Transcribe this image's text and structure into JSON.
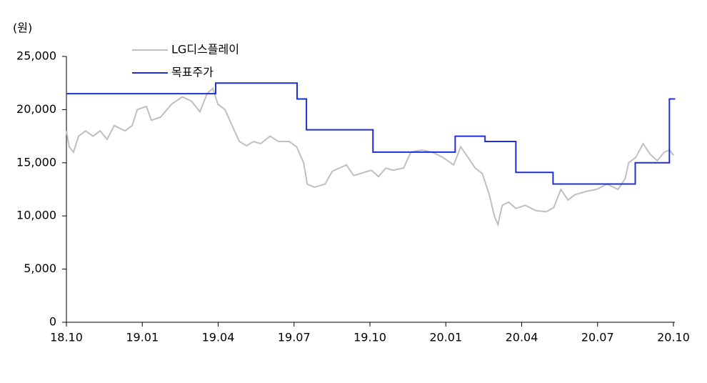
{
  "chart_data": {
    "type": "line",
    "y_label": "(원)",
    "xlim": [
      0,
      24
    ],
    "xticks": [
      {
        "value": 0,
        "label": "18.10"
      },
      {
        "value": 3,
        "label": "19.01"
      },
      {
        "value": 6,
        "label": "19.04"
      },
      {
        "value": 9,
        "label": "19.07"
      },
      {
        "value": 12,
        "label": "19.10"
      },
      {
        "value": 15,
        "label": "20.01"
      },
      {
        "value": 18,
        "label": "20.04"
      },
      {
        "value": 21,
        "label": "20.07"
      },
      {
        "value": 24,
        "label": "20.10"
      }
    ],
    "ylim": [
      0,
      25000
    ],
    "yticks": [
      0,
      {
        "value": 5000,
        "label": "5,000"
      },
      {
        "value": 10000,
        "label": "10,000"
      },
      {
        "value": 15000,
        "label": "15,000"
      },
      {
        "value": 20000,
        "label": "20,000"
      },
      {
        "value": 25000,
        "label": "25,000"
      }
    ],
    "legend": "top",
    "series": [
      {
        "name": "LG디스플레이",
        "color": "#bfbfbf",
        "x": [
          0,
          0.11,
          0.28,
          0.48,
          0.76,
          1.05,
          1.33,
          1.61,
          1.89,
          2.32,
          2.6,
          2.8,
          3.16,
          3.36,
          3.73,
          4.15,
          4.58,
          4.94,
          5.28,
          5.56,
          5.79,
          5.99,
          6.27,
          6.55,
          6.84,
          7.12,
          7.4,
          7.68,
          8.05,
          8.39,
          8.81,
          9.1,
          9.38,
          9.52,
          9.8,
          10.23,
          10.51,
          10.79,
          11.07,
          11.36,
          11.64,
          12.06,
          12.34,
          12.63,
          12.91,
          13.33,
          13.62,
          14.04,
          14.46,
          14.89,
          15.31,
          15.59,
          15.88,
          16.16,
          16.44,
          16.72,
          16.92,
          17.06,
          17.23,
          17.49,
          17.77,
          18.14,
          18.56,
          18.98,
          19.27,
          19.55,
          19.83,
          20.11,
          20.54,
          20.96,
          21.38,
          21.81,
          22.09,
          22.23,
          22.51,
          22.8,
          23.08,
          23.36,
          23.64,
          23.84,
          24.01
        ],
        "values": [
          18000,
          16500,
          16000,
          17500,
          18000,
          17500,
          18000,
          17200,
          18500,
          18000,
          18500,
          20000,
          20300,
          19000,
          19300,
          20500,
          21200,
          20800,
          19800,
          21500,
          22000,
          20500,
          20000,
          18500,
          17000,
          16600,
          17000,
          16800,
          17500,
          17000,
          17000,
          16500,
          15000,
          13000,
          12700,
          13000,
          14200,
          14500,
          14800,
          13800,
          14000,
          14300,
          13700,
          14500,
          14300,
          14500,
          16000,
          16200,
          16000,
          15500,
          14800,
          16500,
          15500,
          14500,
          14000,
          12000,
          10000,
          9200,
          11000,
          11300,
          10700,
          11000,
          10500,
          10400,
          10800,
          12500,
          11500,
          12000,
          12300,
          12500,
          13000,
          12500,
          13500,
          15000,
          15500,
          16800,
          15800,
          15200,
          16000,
          16200,
          15700
        ]
      },
      {
        "name": "목표주가",
        "color": "#1f2fd8",
        "x": [
          0,
          5.9,
          5.9,
          9.12,
          9.12,
          9.49,
          9.49,
          12.12,
          12.12,
          15.37,
          15.37,
          16.55,
          16.55,
          17.77,
          17.77,
          19.24,
          19.24,
          22.49,
          22.49,
          23.84,
          23.84,
          24.07
        ],
        "values": [
          21500,
          21500,
          22500,
          22500,
          21000,
          21000,
          18100,
          18100,
          16000,
          16000,
          17500,
          17500,
          17000,
          17000,
          14100,
          14100,
          13000,
          13000,
          15000,
          15000,
          21000,
          21000
        ]
      }
    ]
  }
}
